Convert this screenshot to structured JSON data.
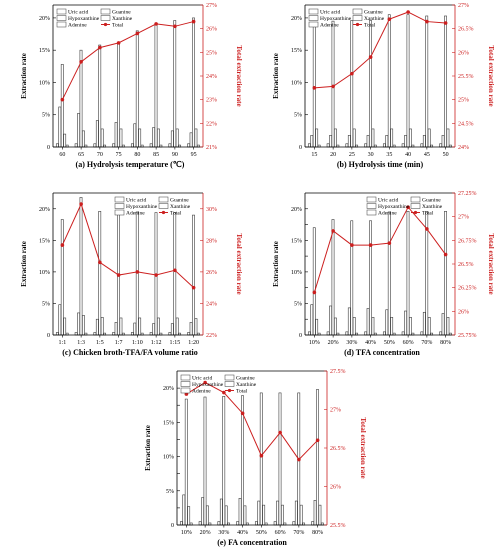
{
  "colors": {
    "bar_stroke": "#3a3a3a",
    "bar_fill": "#ffffff",
    "total_line": "#cc1f1f",
    "axis": "#000000"
  },
  "legend_names": [
    "Uric acid",
    "Guanine",
    "Hypoxanthine",
    "Xanthine",
    "Adenine",
    "Total"
  ],
  "chart_data": [
    {
      "type": "bar",
      "title": "(a)  Hydrolysis temperature (℃)",
      "ylabel": "Extraction rate",
      "y2label": "Total extraction rate",
      "categories": [
        "60",
        "65",
        "70",
        "75",
        "80",
        "85",
        "90",
        "95"
      ],
      "ylim": [
        0,
        22
      ],
      "yticks": [
        0,
        5,
        10,
        15,
        20
      ],
      "ytick_labels": [
        "0",
        "5%",
        "10%",
        "15%",
        "20%"
      ],
      "y2lim": [
        21,
        27
      ],
      "y2ticks": [
        21,
        22,
        23,
        24,
        25,
        26,
        27
      ],
      "y2tick_labels": [
        "21%",
        "22%",
        "23%",
        "24%",
        "25%",
        "26%",
        "27%"
      ],
      "series": [
        {
          "name": "Uric acid",
          "values": [
            0.5,
            0.5,
            0.5,
            0.5,
            0.5,
            0.5,
            0.5,
            0.5
          ]
        },
        {
          "name": "Hypoxanthine",
          "values": [
            6.2,
            5.2,
            4.1,
            3.8,
            3.6,
            3.0,
            2.5,
            2.2
          ]
        },
        {
          "name": "Adenine",
          "values": [
            12.8,
            15.0,
            15.8,
            16.0,
            18.0,
            19.2,
            19.6,
            20.0
          ]
        },
        {
          "name": "Guanine",
          "values": [
            2.0,
            2.5,
            2.8,
            2.8,
            2.8,
            2.8,
            2.8,
            2.8
          ]
        },
        {
          "name": "Xanthine",
          "values": [
            0.3,
            0.3,
            0.3,
            0.3,
            0.3,
            0.3,
            0.3,
            0.3
          ]
        }
      ],
      "total": {
        "name": "Total",
        "values": [
          23.0,
          24.6,
          25.2,
          25.4,
          25.8,
          26.2,
          26.1,
          26.3
        ]
      },
      "legend": "top-left"
    },
    {
      "type": "bar",
      "title": "(b)  Hydrolysis time (min)",
      "ylabel": "Extraction rate",
      "y2label": "Total extraction rate",
      "categories": [
        "15",
        "20",
        "25",
        "30",
        "35",
        "40",
        "45",
        "50"
      ],
      "ylim": [
        0,
        22
      ],
      "yticks": [
        0,
        5,
        10,
        15,
        20
      ],
      "ytick_labels": [
        "0",
        "5%",
        "10%",
        "15%",
        "20%"
      ],
      "y2lim": [
        24,
        27
      ],
      "y2ticks": [
        24,
        24.5,
        25,
        25.5,
        26,
        26.5,
        27
      ],
      "y2tick_labels": [
        "24%",
        "24.5%",
        "25%",
        "25.5%",
        "26%",
        "26.5%",
        "27%"
      ],
      "series": [
        {
          "name": "Uric acid",
          "values": [
            0.5,
            0.5,
            0.5,
            0.5,
            0.5,
            0.5,
            0.5,
            0.5
          ]
        },
        {
          "name": "Hypoxanthine",
          "values": [
            1.8,
            1.8,
            1.8,
            1.8,
            1.8,
            1.8,
            1.8,
            1.8
          ]
        },
        {
          "name": "Adenine",
          "values": [
            19.3,
            19.5,
            19.6,
            19.6,
            20.5,
            20.5,
            20.3,
            20.3
          ]
        },
        {
          "name": "Guanine",
          "values": [
            2.8,
            2.8,
            2.8,
            2.8,
            2.8,
            2.8,
            2.8,
            2.8
          ]
        },
        {
          "name": "Xanthine",
          "values": [
            0.3,
            0.3,
            0.3,
            0.3,
            0.3,
            0.3,
            0.3,
            0.3
          ]
        }
      ],
      "total": {
        "name": "Total",
        "values": [
          25.25,
          25.28,
          25.55,
          25.9,
          26.7,
          26.85,
          26.65,
          26.62
        ]
      },
      "legend": "top-left"
    },
    {
      "type": "bar",
      "title": "(c)  Chicken broth-TFA/FA volume ratio",
      "ylabel": "Extraction rate",
      "y2label": "Total extraction rate",
      "categories": [
        "1:1",
        "1:3",
        "1:5",
        "1:7",
        "1:10",
        "1:12",
        "1:15",
        "1:20"
      ],
      "ylim": [
        0,
        22.5
      ],
      "yticks": [
        0,
        5,
        10,
        15,
        20
      ],
      "ytick_labels": [
        "0",
        "5%",
        "10%",
        "15%",
        "20%"
      ],
      "y2lim": [
        22,
        31
      ],
      "y2ticks": [
        22,
        24,
        26,
        28,
        30
      ],
      "y2tick_labels": [
        "22%",
        "24%",
        "26%",
        "28%",
        "30%"
      ],
      "series": [
        {
          "name": "Uric acid",
          "values": [
            0.4,
            0.4,
            0.4,
            0.4,
            0.4,
            0.4,
            0.4,
            0.4
          ]
        },
        {
          "name": "Hypoxanthine",
          "values": [
            4.8,
            3.5,
            2.5,
            2.0,
            1.9,
            1.8,
            1.8,
            2.0
          ]
        },
        {
          "name": "Adenine",
          "values": [
            18.3,
            21.8,
            19.6,
            19.4,
            19.5,
            19.4,
            19.4,
            19.0
          ]
        },
        {
          "name": "Guanine",
          "values": [
            2.7,
            3.1,
            2.8,
            2.7,
            2.7,
            2.7,
            2.7,
            2.6
          ]
        },
        {
          "name": "Xanthine",
          "values": [
            0.3,
            0.3,
            0.3,
            0.3,
            0.3,
            0.3,
            0.3,
            0.3
          ]
        }
      ],
      "total": {
        "name": "Total",
        "values": [
          27.7,
          30.3,
          26.6,
          25.8,
          26.0,
          25.8,
          26.1,
          25.0
        ]
      },
      "legend": "top-right"
    },
    {
      "type": "bar",
      "title": "(d)  TFA concentration",
      "ylabel": "Extraction rate",
      "y2label": "Total extraction rate",
      "categories": [
        "10%",
        "20%",
        "30%",
        "40%",
        "50%",
        "60%",
        "70%",
        "80%"
      ],
      "ylim": [
        0,
        22.5
      ],
      "yticks": [
        0,
        2.5,
        5,
        7.5,
        10,
        12.5,
        15,
        17.5,
        20
      ],
      "ytick_labels": [
        "0",
        "",
        "5%",
        "",
        "10%",
        "",
        "15%",
        "",
        "20%"
      ],
      "y2lim": [
        25.75,
        27.25
      ],
      "y2ticks": [
        25.75,
        26,
        26.25,
        26.5,
        26.75,
        27,
        27.25
      ],
      "y2tick_labels": [
        "25.75%",
        "26%",
        "26.25%",
        "26.5%",
        "26.75%",
        "27%",
        "27.25%"
      ],
      "series": [
        {
          "name": "Uric acid",
          "values": [
            0.5,
            0.5,
            0.5,
            0.5,
            0.5,
            0.5,
            0.5,
            0.5
          ]
        },
        {
          "name": "Hypoxanthine",
          "values": [
            4.8,
            4.6,
            4.3,
            4.2,
            4.0,
            3.8,
            3.6,
            3.4
          ]
        },
        {
          "name": "Adenine",
          "values": [
            17.0,
            18.3,
            18.1,
            18.1,
            19.5,
            19.6,
            19.6,
            19.6
          ]
        },
        {
          "name": "Guanine",
          "values": [
            2.5,
            2.7,
            2.8,
            2.8,
            2.8,
            2.8,
            2.8,
            2.8
          ]
        },
        {
          "name": "Xanthine",
          "values": [
            0.3,
            0.3,
            0.3,
            0.3,
            0.3,
            0.3,
            0.3,
            0.3
          ]
        }
      ],
      "total": {
        "name": "Total",
        "values": [
          26.2,
          26.85,
          26.7,
          26.7,
          26.72,
          27.1,
          26.87,
          26.6
        ]
      },
      "legend": "top-right"
    },
    {
      "type": "bar",
      "title": "(e)  FA concentration",
      "ylabel": "Extraction rate",
      "y2label": "Total extraction rate",
      "categories": [
        "10%",
        "20%",
        "30%",
        "40%",
        "50%",
        "60%",
        "70%",
        "80%"
      ],
      "ylim": [
        0,
        22.5
      ],
      "yticks": [
        0,
        2.5,
        5,
        7.5,
        10,
        12.5,
        15,
        17.5,
        20
      ],
      "ytick_labels": [
        "0",
        "",
        "5%",
        "",
        "10%",
        "",
        "15%",
        "",
        "20%"
      ],
      "y2lim": [
        25.5,
        27.5
      ],
      "y2ticks": [
        25.5,
        26,
        26.5,
        27,
        27.5
      ],
      "y2tick_labels": [
        "25.5%",
        "26%",
        "26.5%",
        "27%",
        "27.5%"
      ],
      "series": [
        {
          "name": "Uric acid",
          "values": [
            0.5,
            0.5,
            0.5,
            0.5,
            0.5,
            0.5,
            0.5,
            0.5
          ]
        },
        {
          "name": "Hypoxanthine",
          "values": [
            4.4,
            4.0,
            3.8,
            3.9,
            3.5,
            3.5,
            3.5,
            3.6
          ]
        },
        {
          "name": "Adenine",
          "values": [
            18.4,
            18.7,
            18.8,
            18.9,
            19.3,
            19.3,
            19.3,
            19.8
          ]
        },
        {
          "name": "Guanine",
          "values": [
            2.7,
            2.8,
            2.8,
            2.8,
            2.9,
            2.9,
            2.9,
            2.9
          ]
        },
        {
          "name": "Xanthine",
          "values": [
            0.3,
            0.3,
            0.3,
            0.3,
            0.3,
            0.3,
            0.3,
            0.3
          ]
        }
      ],
      "total": {
        "name": "Total",
        "values": [
          27.2,
          27.35,
          27.22,
          26.95,
          26.4,
          26.7,
          26.35,
          26.6
        ]
      },
      "legend": "top-left"
    }
  ]
}
